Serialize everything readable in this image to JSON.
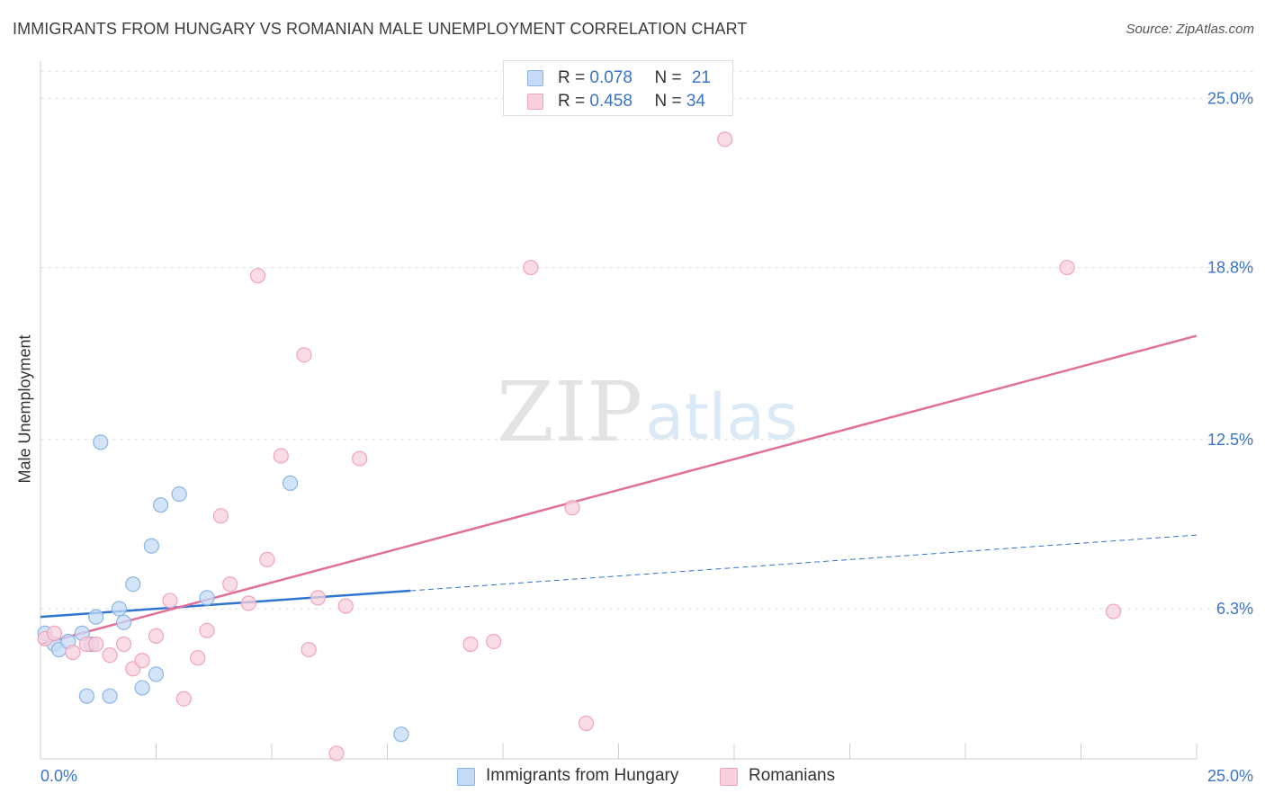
{
  "title": "IMMIGRANTS FROM HUNGARY VS ROMANIAN MALE UNEMPLOYMENT CORRELATION CHART",
  "source": "Source: ZipAtlas.com",
  "watermark": {
    "zip": "ZIP",
    "atlas": "atlas"
  },
  "legend_top": {
    "rows": [
      {
        "r_label": "R = ",
        "r_value": "0.078",
        "n_label": "N = ",
        "n_value": "21"
      },
      {
        "r_label": "R = ",
        "r_value": "0.458",
        "n_label": "N = ",
        "n_value": "34"
      }
    ]
  },
  "chart_data": {
    "type": "scatter",
    "xlabel": "",
    "ylabel": "Male Unemployment",
    "xlim": [
      0,
      25
    ],
    "ylim": [
      0.8,
      26.0
    ],
    "x_tick_labels": [
      "0.0%",
      "25.0%"
    ],
    "y_ticks": [
      {
        "value": 6.3,
        "label": "6.3%"
      },
      {
        "value": 12.5,
        "label": "12.5%"
      },
      {
        "value": 18.8,
        "label": "18.8%"
      },
      {
        "value": 25.0,
        "label": "25.0%"
      }
    ],
    "series": [
      {
        "name": "Immigrants from Hungary",
        "color": "#8ab4e8",
        "fill": "#c5dbf5",
        "line_color": "#2f74d0",
        "trend": {
          "x0": 0.0,
          "y0": 6.0,
          "x_solid_end": 8.0,
          "x1": 25.0,
          "y1": 9.0
        },
        "points": [
          [
            0.1,
            5.4
          ],
          [
            0.3,
            5.0
          ],
          [
            0.4,
            4.8
          ],
          [
            0.6,
            5.1
          ],
          [
            0.9,
            5.4
          ],
          [
            1.0,
            3.1
          ],
          [
            1.2,
            6.0
          ],
          [
            1.3,
            12.4
          ],
          [
            1.5,
            3.1
          ],
          [
            1.7,
            6.3
          ],
          [
            1.8,
            5.8
          ],
          [
            2.0,
            7.2
          ],
          [
            2.2,
            3.4
          ],
          [
            2.4,
            8.6
          ],
          [
            2.5,
            3.9
          ],
          [
            2.6,
            10.1
          ],
          [
            3.0,
            10.5
          ],
          [
            3.6,
            6.7
          ],
          [
            5.4,
            10.9
          ],
          [
            7.8,
            1.7
          ],
          [
            1.1,
            5.0
          ]
        ]
      },
      {
        "name": "Romanians",
        "color": "#f0a3bc",
        "fill": "#f8d0dd",
        "line_color": "#e0709a",
        "trend": {
          "x0": 0.0,
          "y0": 5.0,
          "x_solid_end": 25.0,
          "x1": 25.0,
          "y1": 16.3
        },
        "points": [
          [
            0.1,
            5.2
          ],
          [
            0.3,
            5.4
          ],
          [
            0.7,
            4.7
          ],
          [
            1.0,
            5.0
          ],
          [
            1.2,
            5.0
          ],
          [
            1.5,
            4.6
          ],
          [
            1.8,
            5.0
          ],
          [
            2.0,
            4.1
          ],
          [
            2.2,
            4.4
          ],
          [
            2.5,
            5.3
          ],
          [
            2.8,
            6.6
          ],
          [
            3.1,
            3.0
          ],
          [
            3.4,
            4.5
          ],
          [
            3.6,
            5.5
          ],
          [
            3.9,
            9.7
          ],
          [
            4.1,
            7.2
          ],
          [
            4.5,
            6.5
          ],
          [
            4.7,
            18.5
          ],
          [
            4.9,
            8.1
          ],
          [
            5.2,
            11.9
          ],
          [
            5.7,
            15.6
          ],
          [
            5.8,
            4.8
          ],
          [
            6.0,
            6.7
          ],
          [
            6.4,
            1.0
          ],
          [
            6.6,
            6.4
          ],
          [
            6.9,
            11.8
          ],
          [
            9.3,
            5.0
          ],
          [
            9.8,
            5.1
          ],
          [
            10.6,
            18.8
          ],
          [
            11.5,
            10.0
          ],
          [
            11.8,
            2.1
          ],
          [
            14.8,
            23.5
          ],
          [
            22.2,
            18.8
          ],
          [
            23.2,
            6.2
          ]
        ]
      }
    ]
  }
}
